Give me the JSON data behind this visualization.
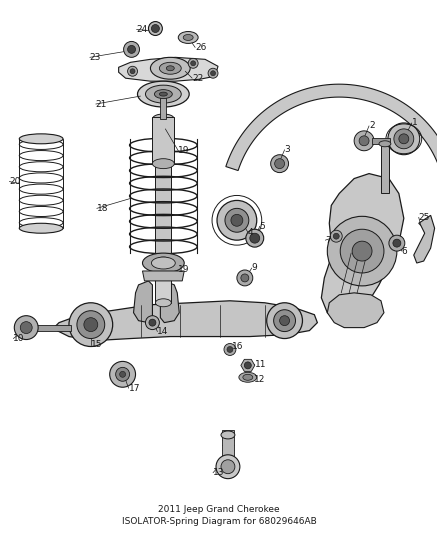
{
  "title_line1": "2011 Jeep Grand Cherokee",
  "title_line2": "ISOLATOR-Spring Diagram for 68029646AB",
  "background_color": "#ffffff",
  "fig_width": 4.38,
  "fig_height": 5.33,
  "dpi": 100,
  "text_color": "#1a1a1a",
  "line_color": "#1a1a1a",
  "light_gray": "#cccccc",
  "mid_gray": "#888888",
  "dark_gray": "#444444",
  "label_fontsize": 6.5,
  "title_fontsize": 6.5
}
